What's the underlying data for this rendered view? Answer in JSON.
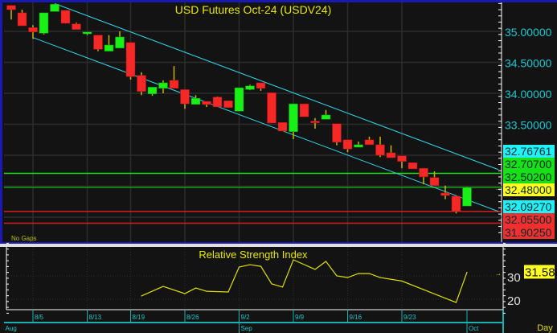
{
  "chart_data": [
    {
      "type": "candlestick",
      "title": "USD  Futures  Oct-24  (USDV24)",
      "status_text": "No Gaps",
      "y_ticks": [
        "35.00000",
        "34.50000",
        "34.00000",
        "33.50000"
      ],
      "y_tick_values": [
        35.0,
        34.5,
        34.0,
        33.5
      ],
      "ylim": [
        31.68,
        35.5
      ],
      "grid": true,
      "colors": {
        "up": "#18f018",
        "down": "#f52828",
        "wick": "#c8b400",
        "channel": "#30d8e8",
        "title": "#e8e800",
        "axis_text": "#18c8d0"
      },
      "candles_ohlc": [
        [
          35.42,
          35.42,
          35.19,
          35.35
        ],
        [
          35.3,
          35.35,
          35.09,
          35.09
        ],
        [
          35.06,
          35.1,
          34.88,
          34.99
        ],
        [
          34.97,
          35.3,
          34.95,
          35.3
        ],
        [
          35.32,
          35.44,
          35.32,
          35.44
        ],
        [
          35.34,
          35.34,
          35.13,
          35.13
        ],
        [
          35.12,
          35.14,
          35.03,
          35.03
        ],
        [
          34.96,
          34.99,
          34.94,
          34.99
        ],
        [
          34.94,
          34.94,
          34.68,
          34.71
        ],
        [
          34.68,
          34.94,
          34.68,
          34.78
        ],
        [
          34.73,
          35.0,
          34.73,
          34.91
        ],
        [
          34.82,
          34.82,
          34.22,
          34.27
        ],
        [
          34.29,
          34.34,
          33.97,
          34.03
        ],
        [
          33.99,
          34.1,
          33.96,
          34.1
        ],
        [
          34.08,
          34.21,
          34.0,
          34.17
        ],
        [
          34.21,
          34.44,
          34.08,
          34.08
        ],
        [
          34.06,
          34.06,
          33.75,
          33.83
        ],
        [
          33.82,
          33.97,
          33.82,
          33.92
        ],
        [
          33.87,
          33.87,
          33.78,
          33.82
        ],
        [
          33.94,
          33.95,
          33.78,
          33.78
        ],
        [
          33.88,
          33.88,
          33.77,
          33.77
        ],
        [
          33.71,
          34.09,
          33.71,
          34.09
        ],
        [
          34.06,
          34.14,
          34.05,
          34.12
        ],
        [
          34.17,
          34.17,
          34.04,
          34.08
        ],
        [
          34.01,
          34.01,
          33.52,
          33.52
        ],
        [
          33.53,
          33.53,
          33.39,
          33.39
        ],
        [
          33.38,
          33.83,
          33.26,
          33.83
        ],
        [
          33.83,
          33.83,
          33.62,
          33.62
        ],
        [
          33.55,
          33.6,
          33.43,
          33.53
        ],
        [
          33.58,
          33.73,
          33.58,
          33.65
        ],
        [
          33.51,
          33.51,
          33.16,
          33.21
        ],
        [
          33.25,
          33.25,
          33.05,
          33.1
        ],
        [
          33.13,
          33.22,
          33.13,
          33.17
        ],
        [
          33.25,
          33.3,
          33.17,
          33.17
        ],
        [
          33.17,
          33.3,
          32.97,
          33.0
        ],
        [
          33.04,
          33.16,
          32.96,
          32.96
        ],
        [
          32.99,
          32.99,
          32.79,
          32.9
        ],
        [
          32.88,
          32.88,
          32.78,
          32.78
        ],
        [
          32.79,
          32.79,
          32.53,
          32.65
        ],
        [
          32.64,
          32.74,
          32.51,
          32.51
        ],
        [
          32.39,
          32.51,
          32.29,
          32.35
        ],
        [
          32.34,
          32.34,
          32.06,
          32.09
        ],
        [
          32.18,
          32.49,
          32.18,
          32.48
        ]
      ],
      "channel_upper": [
        [
          4,
          35.45
        ],
        [
          44.9,
          32.76761
        ]
      ],
      "channel_lower": [
        [
          2,
          34.9
        ],
        [
          44.9,
          32.0927
        ]
      ],
      "horizontal_levels": [
        {
          "value": 32.707,
          "color": "#20e020"
        },
        {
          "value": 32.48,
          "color": "#10a010"
        },
        {
          "value": 32.0927,
          "color": "#d02020"
        },
        {
          "value": 31.9025,
          "color": "#d02020"
        }
      ],
      "price_labels": [
        {
          "text": "32.76761",
          "bg": "#20f0f8"
        },
        {
          "text": "32.70700",
          "bg": "#18e018"
        },
        {
          "text": "32.50200",
          "bg": "#18e018"
        },
        {
          "text": "32.48000",
          "bg": "#ffff20"
        },
        {
          "text": "32.09270",
          "bg": "#20f0f8"
        },
        {
          "text": "32.05500",
          "bg": "#f03030"
        },
        {
          "text": "31.90250",
          "bg": "#f03030"
        }
      ]
    },
    {
      "type": "line",
      "title": "Relative Strength Index",
      "y_ticks": [
        "30",
        "20"
      ],
      "y_tick_values": [
        30,
        20
      ],
      "last_value_label": "31.58",
      "color": "#e0e000",
      "points": [
        [
          12,
          21.4
        ],
        [
          14,
          25.5
        ],
        [
          16,
          22.4
        ],
        [
          17,
          24.8
        ],
        [
          18,
          23.4
        ],
        [
          20,
          23.1
        ],
        [
          21,
          33.8
        ],
        [
          22,
          34.8
        ],
        [
          23,
          34.1
        ],
        [
          24,
          26.6
        ],
        [
          25,
          25.2
        ],
        [
          26,
          36.9
        ],
        [
          28,
          32.8
        ],
        [
          29,
          36.2
        ],
        [
          30,
          30.0
        ],
        [
          31,
          29.3
        ],
        [
          32,
          31.0
        ],
        [
          33,
          31.0
        ],
        [
          34,
          29.3
        ],
        [
          36,
          27.8
        ],
        [
          38,
          24.1
        ],
        [
          41,
          18.6
        ],
        [
          42,
          31.58
        ]
      ]
    }
  ],
  "x_axis": {
    "day_labels": [
      {
        "text": "8/5",
        "index": 2
      },
      {
        "text": "8/13",
        "index": 7
      },
      {
        "text": "8/19",
        "index": 11
      },
      {
        "text": "8/26",
        "index": 16
      },
      {
        "text": "9/2",
        "index": 21
      },
      {
        "text": "9/9",
        "index": 26
      },
      {
        "text": "9/16",
        "index": 31
      },
      {
        "text": "9/23",
        "index": 36
      }
    ],
    "month_labels": [
      {
        "text": "Aug",
        "index": -0.7
      },
      {
        "text": "Sep",
        "index": 21
      },
      {
        "text": "Oct",
        "index": 42
      }
    ],
    "period_label": "Day"
  }
}
